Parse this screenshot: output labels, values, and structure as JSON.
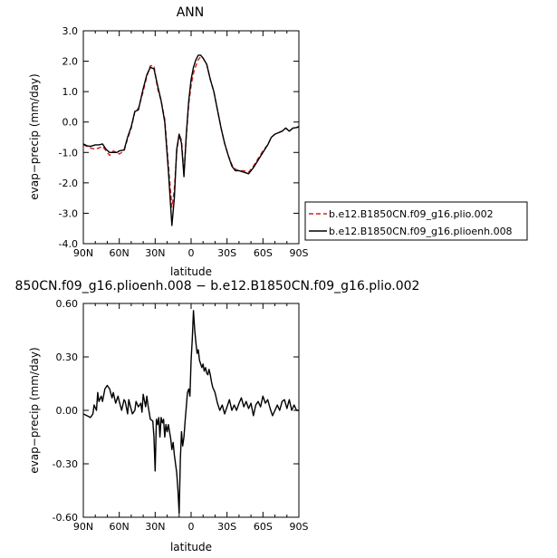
{
  "chart_data": [
    {
      "type": "line",
      "title": "ANN",
      "xlabel": "latitude",
      "ylabel": "evap−precip (mm/day)",
      "xlim": [
        90,
        -90
      ],
      "ylim": [
        -4.0,
        3.0
      ],
      "x_ticks": [
        90,
        60,
        30,
        0,
        -30,
        -60,
        -90
      ],
      "x_tick_labels": [
        "90N",
        "60N",
        "30N",
        "0",
        "30S",
        "60S",
        "90S"
      ],
      "y_ticks": [
        3.0,
        2.0,
        1.0,
        0.0,
        -1.0,
        -2.0,
        -3.0,
        -4.0
      ],
      "y_tick_labels": [
        "3.0",
        "2.0",
        "1.0",
        "0.0",
        "-1.0",
        "-2.0",
        "-3.0",
        "-4.0"
      ],
      "legend_position": "right",
      "series": [
        {
          "name": "b.e12.B1850CN.f09_g16.plio.002",
          "color": "#d62020",
          "dash": "dashed",
          "x": [
            90,
            87,
            84,
            80,
            77,
            74,
            71,
            68,
            65,
            62,
            60,
            56,
            53,
            50,
            47,
            44,
            40,
            37,
            34,
            31,
            28,
            25,
            22,
            19,
            16,
            14,
            12,
            10,
            8,
            6,
            4,
            2,
            0,
            -2,
            -4,
            -6,
            -8,
            -10,
            -13,
            -16,
            -19,
            -22,
            -25,
            -28,
            -31,
            -34,
            -37,
            -40,
            -44,
            -48,
            -52,
            -56,
            -60,
            -64,
            -67,
            -70,
            -73,
            -76,
            -79,
            -82,
            -85,
            -88,
            -90
          ],
          "y": [
            -0.75,
            -0.8,
            -0.85,
            -0.9,
            -0.85,
            -0.8,
            -0.95,
            -1.1,
            -0.95,
            -1.0,
            -1.05,
            -0.95,
            -0.55,
            -0.2,
            0.35,
            0.45,
            1.0,
            1.5,
            1.85,
            1.85,
            1.1,
            0.7,
            0.1,
            -1.4,
            -2.8,
            -2.2,
            -1.0,
            -0.4,
            -0.6,
            -1.7,
            -0.5,
            0.6,
            1.2,
            1.6,
            1.85,
            2.05,
            2.15,
            2.1,
            1.9,
            1.4,
            1.0,
            0.4,
            -0.2,
            -0.7,
            -1.1,
            -1.4,
            -1.55,
            -1.6,
            -1.6,
            -1.65,
            -1.45,
            -1.2,
            -0.95,
            -0.75,
            -0.5,
            -0.4,
            -0.35,
            -0.3,
            -0.2,
            -0.3,
            -0.2,
            -0.18,
            -0.15
          ]
        },
        {
          "name": "b.e12.B1850CN.f09_g16.plioenh.008",
          "color": "#000000",
          "dash": "solid",
          "x": [
            90,
            87,
            84,
            80,
            77,
            74,
            71,
            68,
            65,
            62,
            60,
            56,
            53,
            50,
            47,
            44,
            40,
            37,
            34,
            31,
            28,
            25,
            22,
            19,
            16,
            14,
            12,
            10,
            8,
            6,
            4,
            2,
            0,
            -2,
            -4,
            -6,
            -8,
            -10,
            -13,
            -16,
            -19,
            -22,
            -25,
            -28,
            -31,
            -34,
            -37,
            -40,
            -44,
            -48,
            -52,
            -56,
            -60,
            -64,
            -67,
            -70,
            -73,
            -76,
            -79,
            -82,
            -85,
            -88,
            -90
          ],
          "y": [
            -0.72,
            -0.78,
            -0.8,
            -0.75,
            -0.75,
            -0.72,
            -0.9,
            -1.0,
            -1.0,
            -1.0,
            -0.95,
            -0.92,
            -0.5,
            -0.15,
            0.35,
            0.4,
            1.1,
            1.55,
            1.8,
            1.75,
            1.2,
            0.7,
            0.0,
            -1.6,
            -3.4,
            -2.5,
            -0.9,
            -0.4,
            -0.7,
            -1.8,
            -0.4,
            0.7,
            1.4,
            1.8,
            2.05,
            2.2,
            2.2,
            2.1,
            1.9,
            1.4,
            1.0,
            0.4,
            -0.2,
            -0.7,
            -1.1,
            -1.45,
            -1.6,
            -1.6,
            -1.65,
            -1.7,
            -1.5,
            -1.25,
            -1.0,
            -0.75,
            -0.5,
            -0.4,
            -0.35,
            -0.3,
            -0.2,
            -0.3,
            -0.2,
            -0.18,
            -0.15
          ]
        }
      ]
    },
    {
      "type": "line",
      "title": "850CN.f09_g16.plioenh.008 − b.e12.B1850CN.f09_g16.plio.002",
      "xlabel": "latitude",
      "ylabel": "evap−precip (mm/day)",
      "xlim": [
        90,
        -90
      ],
      "ylim": [
        -0.6,
        0.6
      ],
      "x_ticks": [
        90,
        60,
        30,
        0,
        -30,
        -60,
        -90
      ],
      "x_tick_labels": [
        "90N",
        "60N",
        "30N",
        "0",
        "30S",
        "60S",
        "90S"
      ],
      "y_ticks": [
        0.6,
        0.3,
        0.0,
        -0.3,
        -0.6
      ],
      "y_tick_labels": [
        "0.60",
        "0.30",
        "0.00",
        "-0.30",
        "-0.60"
      ],
      "series": [
        {
          "color": "#000000",
          "dash": "solid",
          "x": [
            90,
            87,
            84,
            82,
            81,
            79,
            78,
            77,
            75,
            74,
            72,
            70,
            68,
            66,
            65,
            63,
            61,
            60,
            58,
            56,
            55,
            53,
            52,
            51,
            49,
            47,
            46,
            44,
            42,
            41,
            40,
            38,
            37,
            36,
            34,
            32,
            31,
            30,
            29,
            28,
            27,
            26,
            25,
            24,
            23,
            22,
            21,
            20,
            19,
            18,
            17,
            16,
            15,
            14,
            13,
            12,
            11,
            10,
            9,
            8,
            7,
            6,
            5,
            4,
            3,
            2,
            1,
            0,
            -1,
            -2,
            -3,
            -4,
            -5,
            -6,
            -7,
            -8,
            -9,
            -10,
            -11,
            -12,
            -13,
            -14,
            -15,
            -16,
            -17,
            -18,
            -20,
            -22,
            -24,
            -26,
            -28,
            -30,
            -32,
            -34,
            -36,
            -38,
            -40,
            -42,
            -44,
            -46,
            -48,
            -50,
            -52,
            -54,
            -56,
            -58,
            -60,
            -62,
            -64,
            -66,
            -68,
            -70,
            -72,
            -74,
            -76,
            -78,
            -80,
            -82,
            -84,
            -86,
            -88,
            -90
          ],
          "y": [
            -0.02,
            -0.03,
            -0.04,
            -0.02,
            0.03,
            0.0,
            0.1,
            0.05,
            0.08,
            0.05,
            0.12,
            0.14,
            0.12,
            0.07,
            0.1,
            0.04,
            0.08,
            0.05,
            0.0,
            0.06,
            0.05,
            -0.02,
            0.06,
            0.03,
            -0.02,
            0.0,
            0.05,
            0.02,
            0.04,
            -0.01,
            0.09,
            0.02,
            0.08,
            0.03,
            -0.05,
            -0.06,
            -0.15,
            -0.34,
            -0.05,
            -0.08,
            -0.04,
            -0.15,
            -0.04,
            -0.07,
            -0.05,
            -0.15,
            -0.08,
            -0.12,
            -0.08,
            -0.12,
            -0.16,
            -0.22,
            -0.18,
            -0.25,
            -0.3,
            -0.35,
            -0.45,
            -0.58,
            -0.28,
            -0.12,
            -0.2,
            -0.15,
            -0.06,
            0.02,
            0.1,
            0.12,
            0.08,
            0.28,
            0.4,
            0.56,
            0.45,
            0.38,
            0.32,
            0.34,
            0.28,
            0.26,
            0.24,
            0.26,
            0.22,
            0.24,
            0.21,
            0.2,
            0.23,
            0.2,
            0.16,
            0.13,
            0.1,
            0.04,
            0.0,
            0.03,
            -0.02,
            0.02,
            0.06,
            0.0,
            0.03,
            0.0,
            0.04,
            0.07,
            0.02,
            0.05,
            0.01,
            0.04,
            -0.03,
            0.03,
            0.05,
            0.02,
            0.08,
            0.04,
            0.06,
            0.01,
            -0.03,
            0.0,
            0.03,
            0.0,
            0.05,
            0.06,
            0.01,
            0.06,
            0.0,
            0.03,
            0.0,
            0.0
          ]
        }
      ]
    }
  ]
}
